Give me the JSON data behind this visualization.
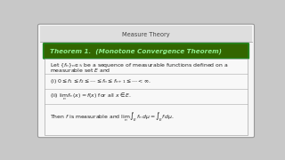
{
  "bg_color": "#c8c8c8",
  "slide_bg": "#f5f5f5",
  "header_bar_color": "#336600",
  "header_text": "Theorem 1.  (Monotone Convergence Theorem)",
  "header_text_color": "#90ee90",
  "title_text": "Measure Theory",
  "title_text_color": "#444444",
  "line1": "Let $\\{f_n\\}_{n\\in\\mathbb{N}}$ be a sequence of measurable functions defined on a",
  "line2": "measurable set $E$ and",
  "cond1": "(i) $0 \\leq f_1 \\leq f_2 \\leq \\cdots \\leq f_n \\leq f_{n+1} \\leq \\cdots < \\infty.$",
  "cond2": "(ii) $\\lim_n f_n(x) = f(x)$ for all $x \\in E.$",
  "conclusion": "Then $f$ is measurable and $\\lim_n \\int_E f_n\\,d\\mu = \\int_E f\\,d\\mu.$",
  "separator_color": "#aaaaaa",
  "text_color": "#222222"
}
